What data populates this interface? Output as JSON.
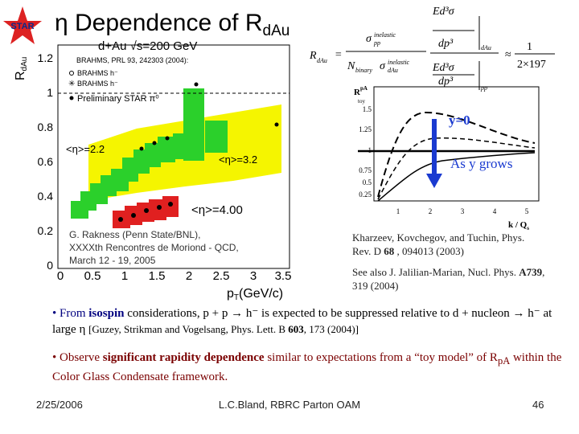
{
  "logo": "STAR",
  "title": {
    "text": "η Dependence of R",
    "sub": "dAu"
  },
  "left_plot": {
    "header": "d+Au √s=200 GeV",
    "y_label": "R",
    "y_label_sub": "dAu",
    "yticks": [
      "1.2",
      "1",
      "0.8",
      "0.6",
      "0.4",
      "0.2",
      "0"
    ],
    "xticks": [
      "0",
      "0.5",
      "1",
      "1.5",
      "2",
      "2.5",
      "3",
      "3.5"
    ],
    "x_label": "p",
    "x_label_sub": "T",
    "x_label_rest": "(GeV/c)",
    "legend": [
      "BRAHMS, PRL 93, 242303 (2004):",
      "BRAHMS h⁻",
      "BRAHMS h⁻",
      "Preliminary STAR π⁰"
    ],
    "annotations": [
      "<η>=2.2",
      "<η>=3.2",
      "<η>=4.00"
    ],
    "caption": [
      "G. Rakness (Penn State/BNL),",
      "XXXXth Rencontres de Moriond - QCD,",
      "March 12 - 19, 2005"
    ]
  },
  "formula": {
    "items": [
      "R",
      "dAu",
      "=",
      "σ",
      "inelastic",
      "pp",
      "N",
      "binary",
      "σ",
      "inelastic",
      "dAu",
      "Ed³σ",
      "dp³",
      "dAu",
      "Ed³σ",
      "dp³",
      "pp",
      "≈",
      "1",
      "2×197"
    ]
  },
  "toy_plot": {
    "y_label": "R",
    "y_label_sup": "pA",
    "y_label_sub": "toy",
    "label_top": "y=0",
    "label_bottom": "As y grows",
    "yticks": [
      "1.5",
      "1.25",
      "1",
      "0.75",
      "0.5",
      "0.25"
    ],
    "xticks": [
      "1",
      "2",
      "3",
      "4",
      "5"
    ],
    "x_label": "k / Q",
    "x_label_sub": "s"
  },
  "citations": [
    {
      "text": "Kharzeev, Kovchegov, and Tuchin, Phys. Rev. D ",
      "bold": "68",
      "rest": " , 094013 (2003)"
    },
    {
      "text": "See also J. Jalilian-Marian, Nucl. Phys. ",
      "bold": "A739",
      "rest": ", 319 (2004)"
    }
  ],
  "bullets": [
    [
      "• From ",
      "isospin",
      " considerations, p + p → h⁻ is expected to be suppressed relative to d + nucleon → h⁻ at large η",
      "[Guzey, Strikman and Vogelsang, Phys. Lett. B ",
      "603",
      ", 173 (2004)]"
    ],
    [
      "• Observe ",
      "significant rapidity dependence",
      " similar to expectations from a “toy model” of R",
      "pA",
      " within the Color Glass Condensate framework."
    ]
  ],
  "footer": {
    "date": "2/25/2006",
    "center": "L.C.Bland, RBRC Parton OAM",
    "page": "46"
  }
}
